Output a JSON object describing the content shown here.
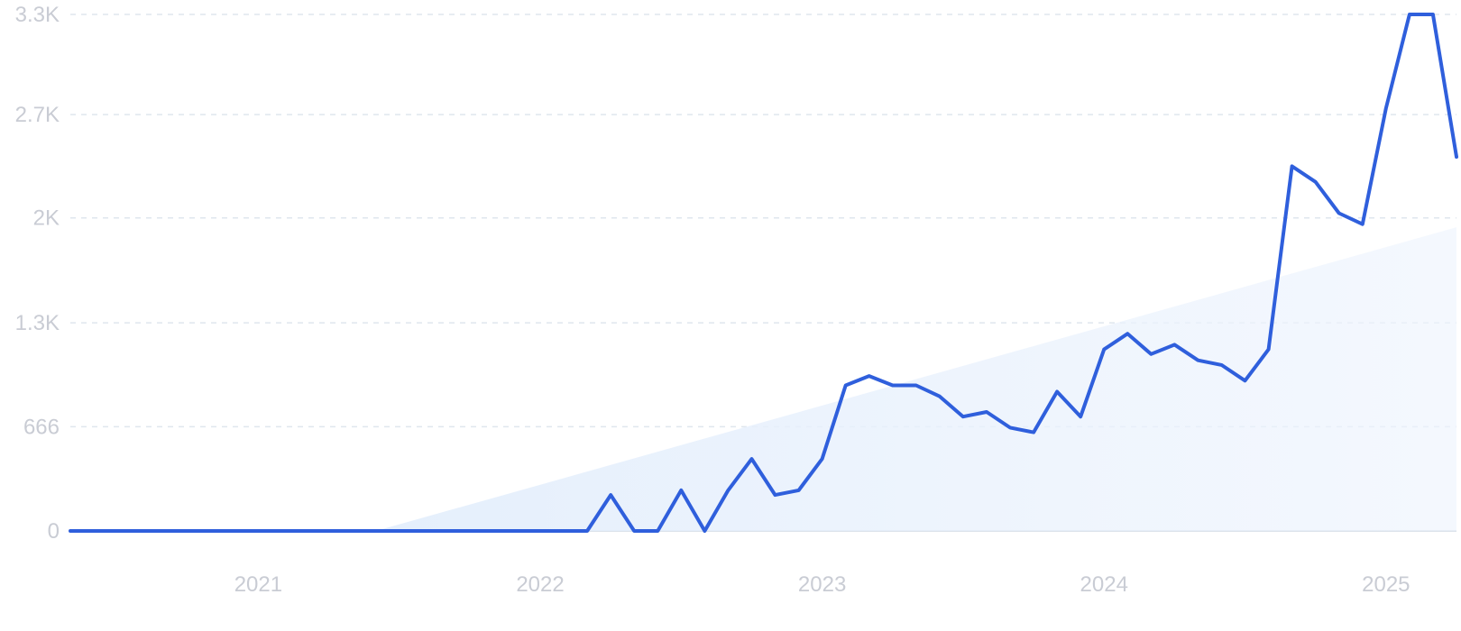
{
  "chart_data": {
    "type": "line",
    "title": "",
    "xlabel": "",
    "ylabel": "",
    "ylim": [
      0,
      3300
    ],
    "y_ticks": [
      {
        "value": 0,
        "label": "0"
      },
      {
        "value": 666,
        "label": "666"
      },
      {
        "value": 1330,
        "label": "1.3K"
      },
      {
        "value": 2000,
        "label": "2K"
      },
      {
        "value": 2660,
        "label": "2.7K"
      },
      {
        "value": 3320,
        "label": "3.3K"
      }
    ],
    "x_ticks": [
      {
        "date": "2021-01",
        "label": "2021"
      },
      {
        "date": "2022-01",
        "label": "2022"
      },
      {
        "date": "2023-01",
        "label": "2023"
      },
      {
        "date": "2024-01",
        "label": "2024"
      },
      {
        "date": "2025-01",
        "label": "2025"
      }
    ],
    "xlim": [
      "2020-05",
      "2025-04"
    ],
    "grid": true,
    "series": [
      {
        "color": "#2f5fdc",
        "x": [
          "2020-05",
          "2020-06",
          "2020-07",
          "2020-08",
          "2020-09",
          "2020-10",
          "2020-11",
          "2020-12",
          "2021-01",
          "2021-02",
          "2021-03",
          "2021-04",
          "2021-05",
          "2021-06",
          "2021-07",
          "2021-08",
          "2021-09",
          "2021-10",
          "2021-11",
          "2021-12",
          "2022-01",
          "2022-02",
          "2022-03",
          "2022-04",
          "2022-05",
          "2022-06",
          "2022-07",
          "2022-08",
          "2022-09",
          "2022-10",
          "2022-11",
          "2022-12",
          "2023-01",
          "2023-02",
          "2023-03",
          "2023-04",
          "2023-05",
          "2023-06",
          "2023-07",
          "2023-08",
          "2023-09",
          "2023-10",
          "2023-11",
          "2023-12",
          "2024-01",
          "2024-02",
          "2024-03",
          "2024-04",
          "2024-05",
          "2024-06",
          "2024-07",
          "2024-08",
          "2024-09",
          "2024-10",
          "2024-11",
          "2024-12",
          "2025-01",
          "2025-02",
          "2025-03",
          "2025-04"
        ],
        "values": [
          0,
          0,
          0,
          0,
          0,
          0,
          0,
          0,
          0,
          0,
          0,
          0,
          0,
          0,
          0,
          0,
          0,
          0,
          0,
          0,
          0,
          0,
          0,
          230,
          0,
          0,
          260,
          0,
          260,
          460,
          230,
          260,
          460,
          930,
          990,
          930,
          930,
          860,
          730,
          760,
          660,
          630,
          890,
          730,
          1160,
          1260,
          1130,
          1190,
          1090,
          1060,
          960,
          1160,
          2330,
          2230,
          2030,
          1960,
          2700,
          3300,
          3300,
          2390
        ]
      }
    ],
    "trend_area": {
      "color": "#e8f1fd",
      "start": {
        "x": "2021-06",
        "y": 0
      },
      "end": {
        "x": "2025-04",
        "y": 1940
      }
    }
  }
}
